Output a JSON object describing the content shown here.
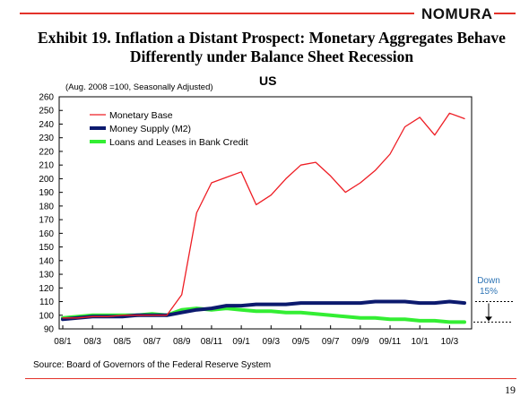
{
  "header": {
    "logo": "NOMURA",
    "title_line1": "Exhibit 19. Inflation a Distant Prospect: Monetary Aggregates Behave",
    "title_line2": "Differently under Balance Sheet Recession",
    "chart_title": "US",
    "note": "(Aug. 2008 =100, Seasonally Adjusted)"
  },
  "footer": {
    "source": "Source: Board of Governors of the Federal Reserve System",
    "page_number": "19"
  },
  "colors": {
    "accent": "#e3322a",
    "monetary_base": "#ee1d24",
    "money_supply": "#0c1a6e",
    "loans": "#33ee33",
    "annotation": "#2e74b5"
  },
  "chart_data": {
    "type": "line",
    "x_ticks": [
      "08/1",
      "08/3",
      "08/5",
      "08/7",
      "08/9",
      "08/11",
      "09/1",
      "09/3",
      "09/5",
      "09/7",
      "09/9",
      "09/11",
      "10/1",
      "10/3"
    ],
    "x_months": [
      "2008-01",
      "2008-02",
      "2008-03",
      "2008-04",
      "2008-05",
      "2008-06",
      "2008-07",
      "2008-08",
      "2008-09",
      "2008-10",
      "2008-11",
      "2008-12",
      "2009-01",
      "2009-02",
      "2009-03",
      "2009-04",
      "2009-05",
      "2009-06",
      "2009-07",
      "2009-08",
      "2009-09",
      "2009-10",
      "2009-11",
      "2009-12",
      "2010-01",
      "2010-02",
      "2010-03",
      "2010-04"
    ],
    "ylim": [
      90,
      260
    ],
    "y_ticks": [
      90,
      100,
      110,
      120,
      130,
      140,
      150,
      160,
      170,
      180,
      190,
      200,
      210,
      220,
      230,
      240,
      250,
      260
    ],
    "grid": false,
    "legend_position": "top-left",
    "series": [
      {
        "name": "Monetary Base",
        "values": [
          98,
          98,
          99,
          99,
          100,
          100,
          100,
          100,
          115,
          175,
          197,
          201,
          205,
          181,
          188,
          200,
          210,
          212,
          202,
          190,
          197,
          206,
          218,
          238,
          245,
          232,
          248,
          244
        ]
      },
      {
        "name": "Money Supply (M2)",
        "values": [
          97,
          98,
          99,
          99,
          99,
          100,
          100,
          100,
          102,
          104,
          105,
          107,
          107,
          108,
          108,
          108,
          109,
          109,
          109,
          109,
          109,
          110,
          110,
          110,
          109,
          109,
          110,
          109
        ]
      },
      {
        "name": "Loans and Leases in Bank Credit",
        "values": [
          98,
          99,
          100,
          100,
          100,
          100,
          101,
          100,
          104,
          105,
          104,
          105,
          104,
          103,
          103,
          102,
          102,
          101,
          100,
          99,
          98,
          98,
          97,
          97,
          96,
          96,
          95,
          95
        ]
      }
    ],
    "annotation": {
      "text_line1": "Down",
      "text_line2": "15%",
      "from_value": 110,
      "to_value": 95
    }
  }
}
